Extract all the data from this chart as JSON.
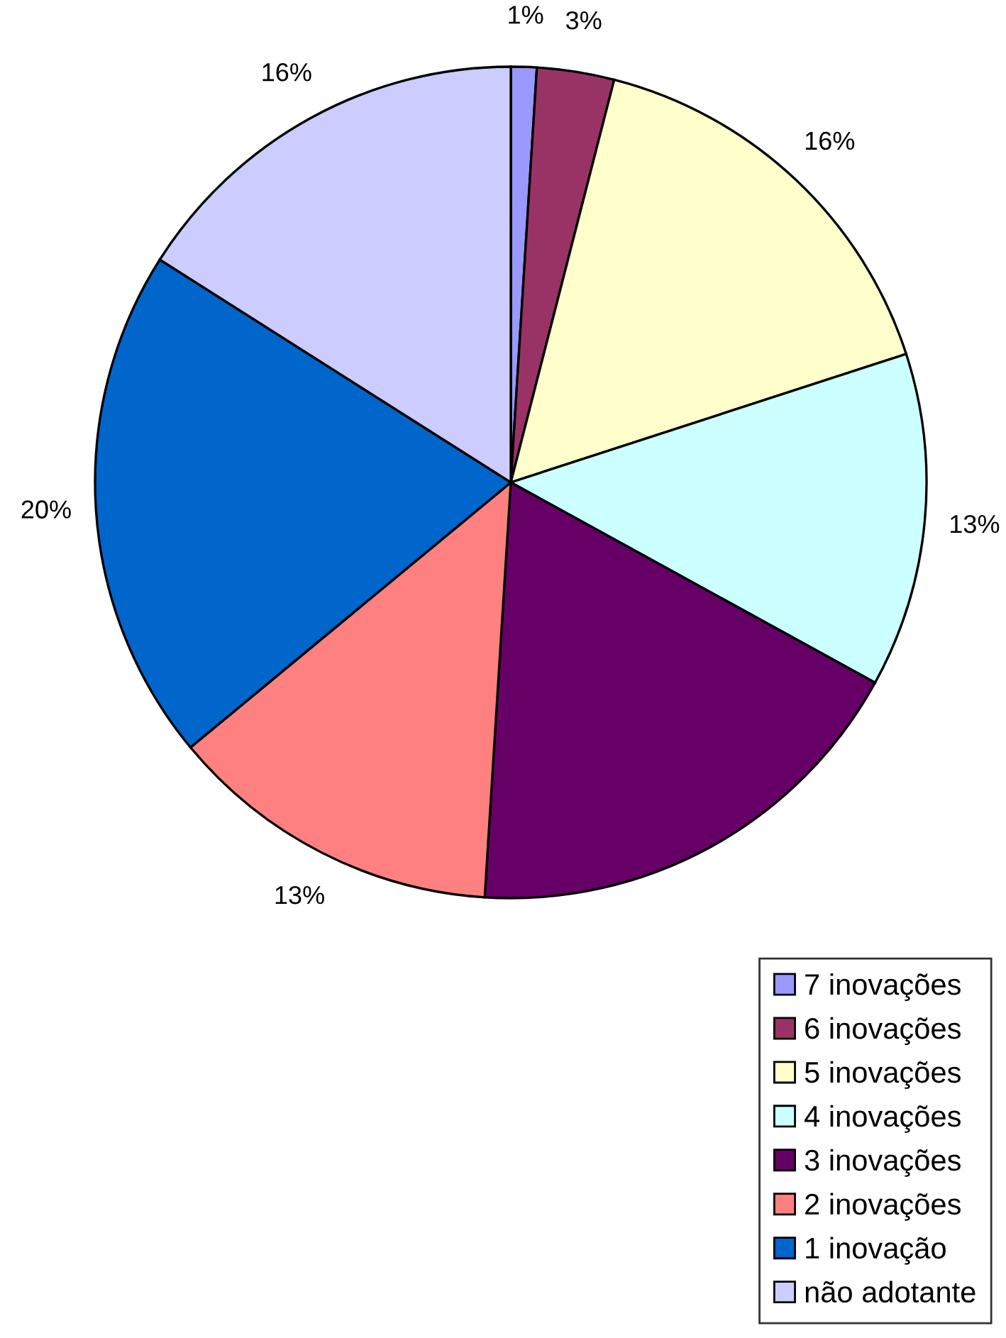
{
  "chart_data": {
    "type": "pie",
    "categories": [
      "7 inovações",
      "6 inovações",
      "5 inovações",
      "4 inovações",
      "3 inovações",
      "2 inovações",
      "1 inovação",
      "não adotante"
    ],
    "values": [
      1,
      3,
      16,
      13,
      18,
      13,
      20,
      16
    ],
    "value_labels": [
      "1%",
      "3%",
      "16%",
      "13%",
      null,
      "13%",
      "20%",
      "16%"
    ],
    "colors": [
      "#9999ff",
      "#993366",
      "#ffffcc",
      "#ccffff",
      "#660066",
      "#ff8080",
      "#0066cc",
      "#ccccff"
    ],
    "legend": "bottom right"
  }
}
